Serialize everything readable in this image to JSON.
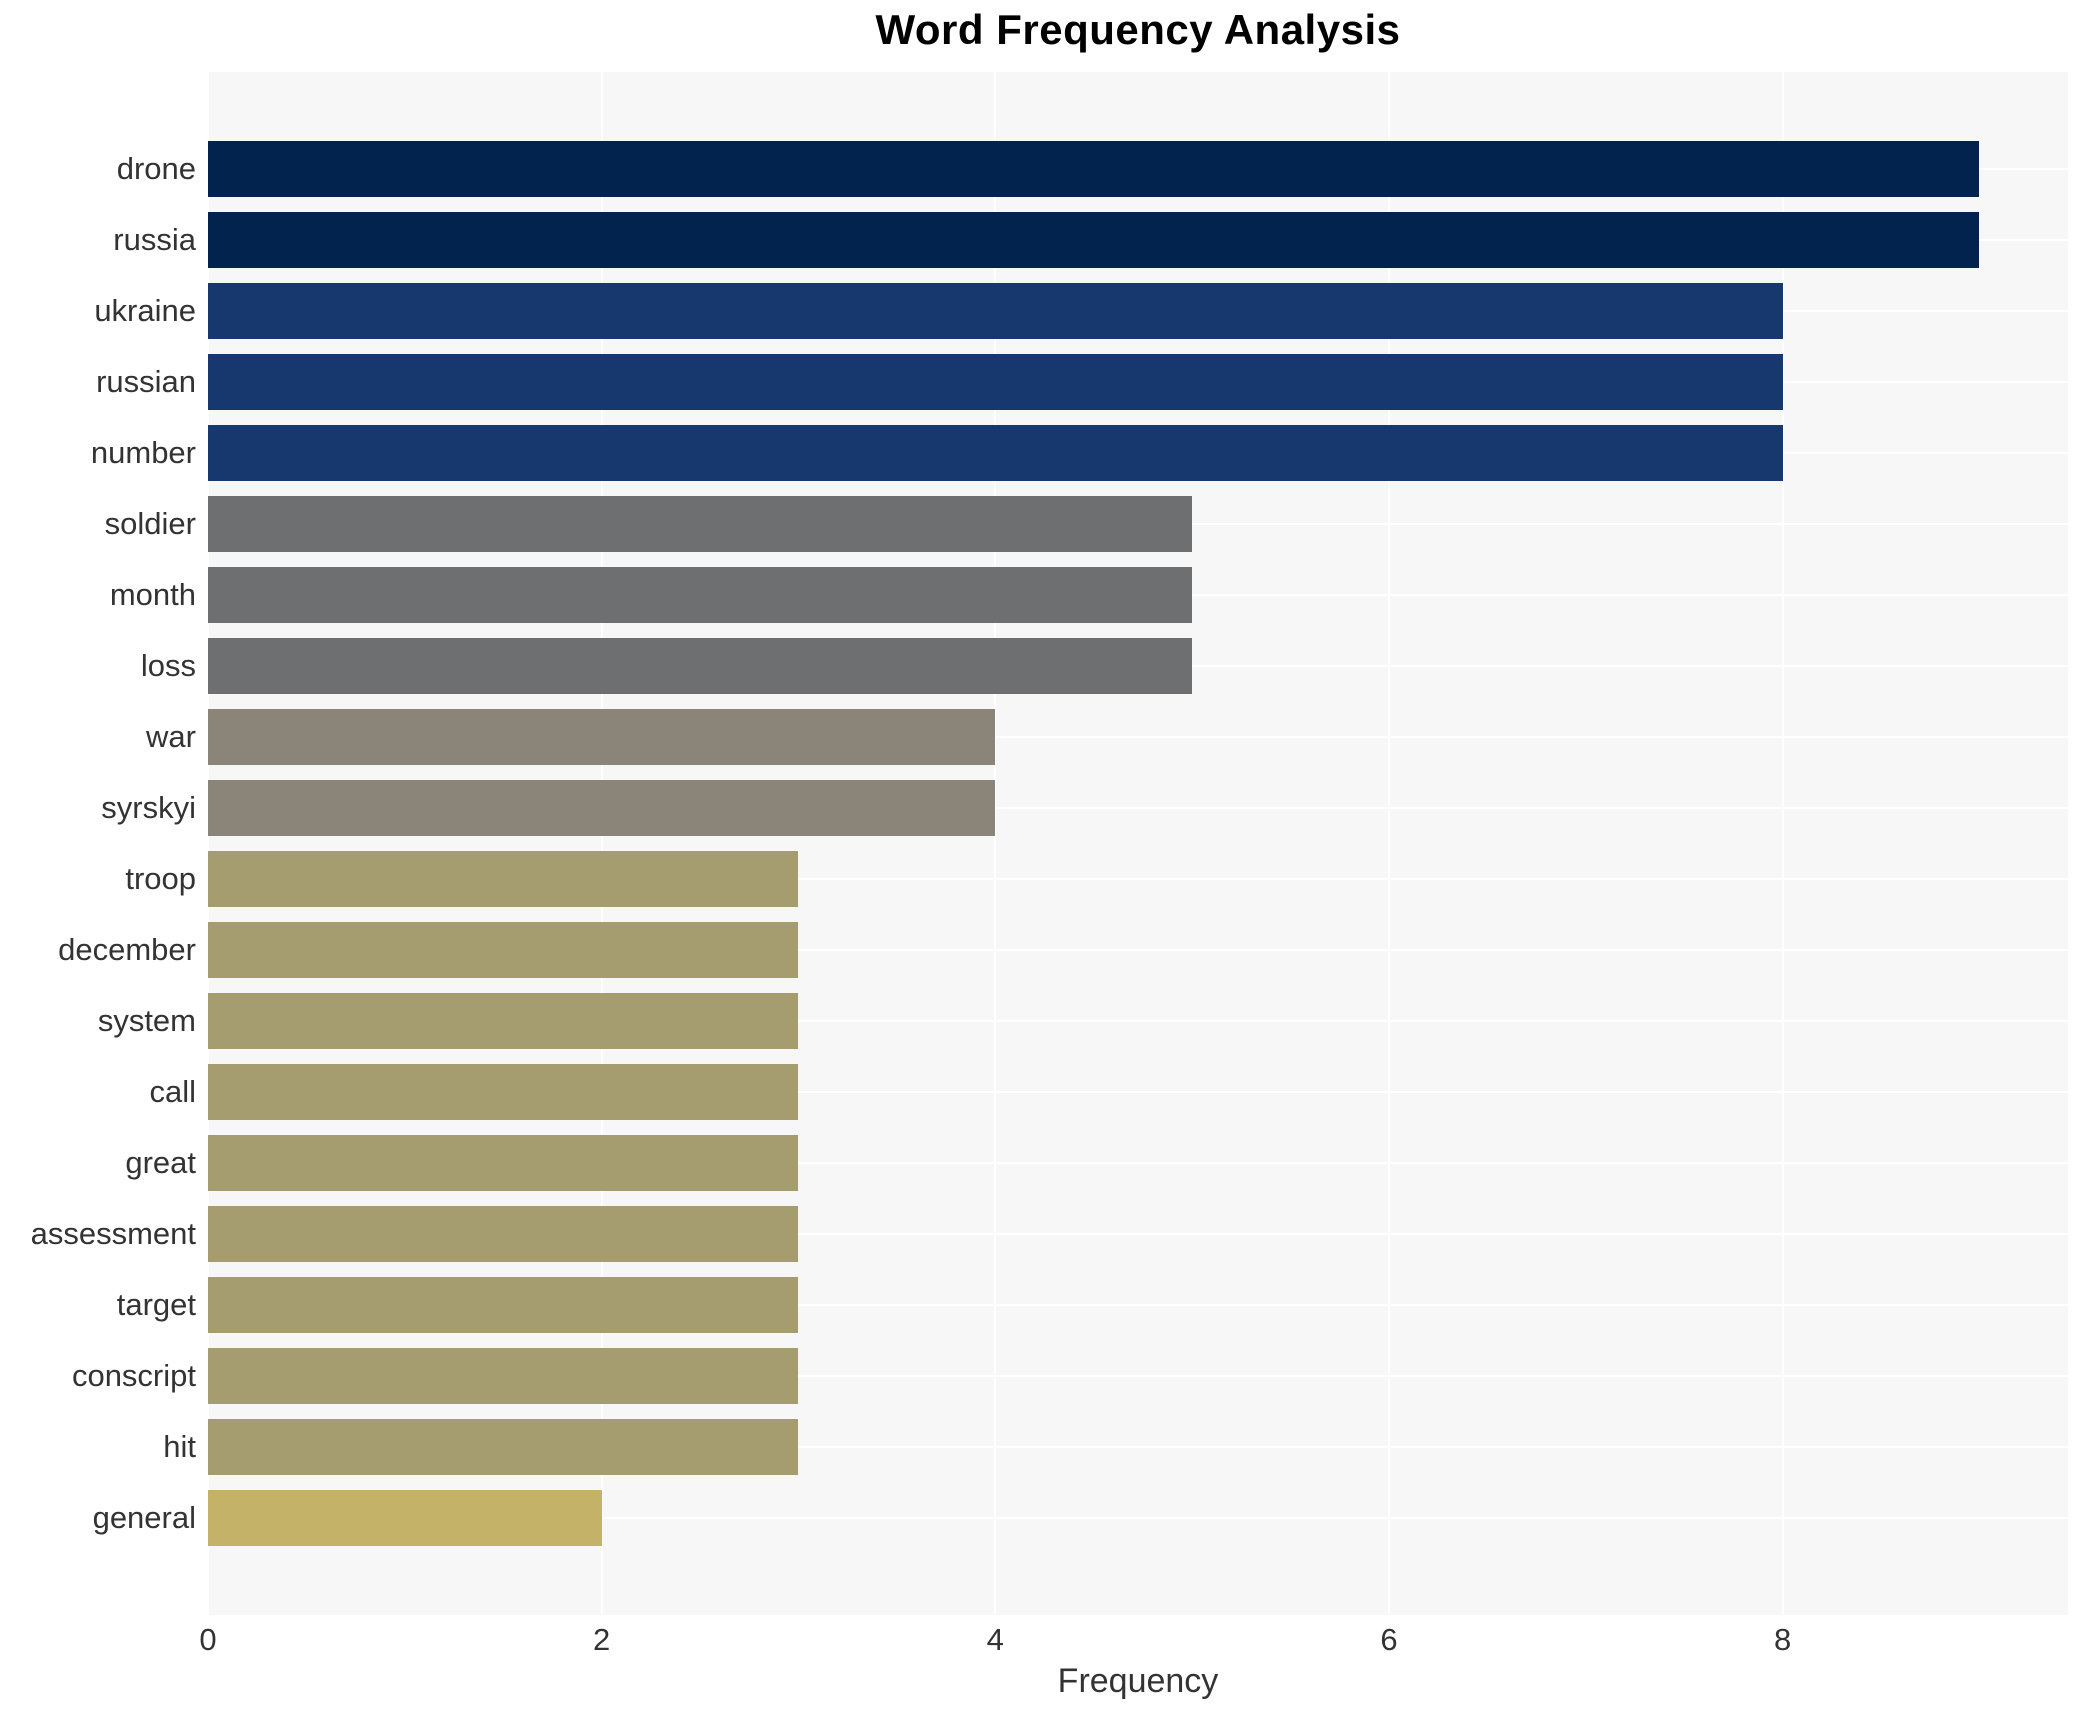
{
  "figure": {
    "background": "#ffffff",
    "plot_background": "#f7f7f7",
    "grid_color": "#ffffff",
    "text_color": "#333333",
    "title_color": "#000000"
  },
  "chart_data": {
    "type": "bar",
    "orientation": "horizontal",
    "title": "Word Frequency Analysis",
    "xlabel": "Frequency",
    "ylabel": "",
    "grid": true,
    "legend_position": "none",
    "xlim": [
      0,
      9.45
    ],
    "xticks": [
      0,
      2,
      4,
      6,
      8
    ],
    "categories": [
      "drone",
      "russia",
      "ukraine",
      "russian",
      "number",
      "soldier",
      "month",
      "loss",
      "war",
      "syrskyi",
      "troop",
      "december",
      "system",
      "call",
      "great",
      "assessment",
      "target",
      "conscript",
      "hit",
      "general"
    ],
    "values": [
      9,
      9,
      8,
      8,
      8,
      5,
      5,
      5,
      4,
      4,
      3,
      3,
      3,
      3,
      3,
      3,
      3,
      3,
      3,
      2
    ],
    "bar_colors": [
      "#02234d",
      "#02234d",
      "#17376f",
      "#17376f",
      "#17376f",
      "#6e6f71",
      "#6e6f71",
      "#6e6f71",
      "#8a8578",
      "#8a8578",
      "#a59c70",
      "#a59c70",
      "#a59c70",
      "#a59c70",
      "#a59c70",
      "#a59c70",
      "#a59c70",
      "#a59c70",
      "#a59c70",
      "#c4b269"
    ]
  }
}
